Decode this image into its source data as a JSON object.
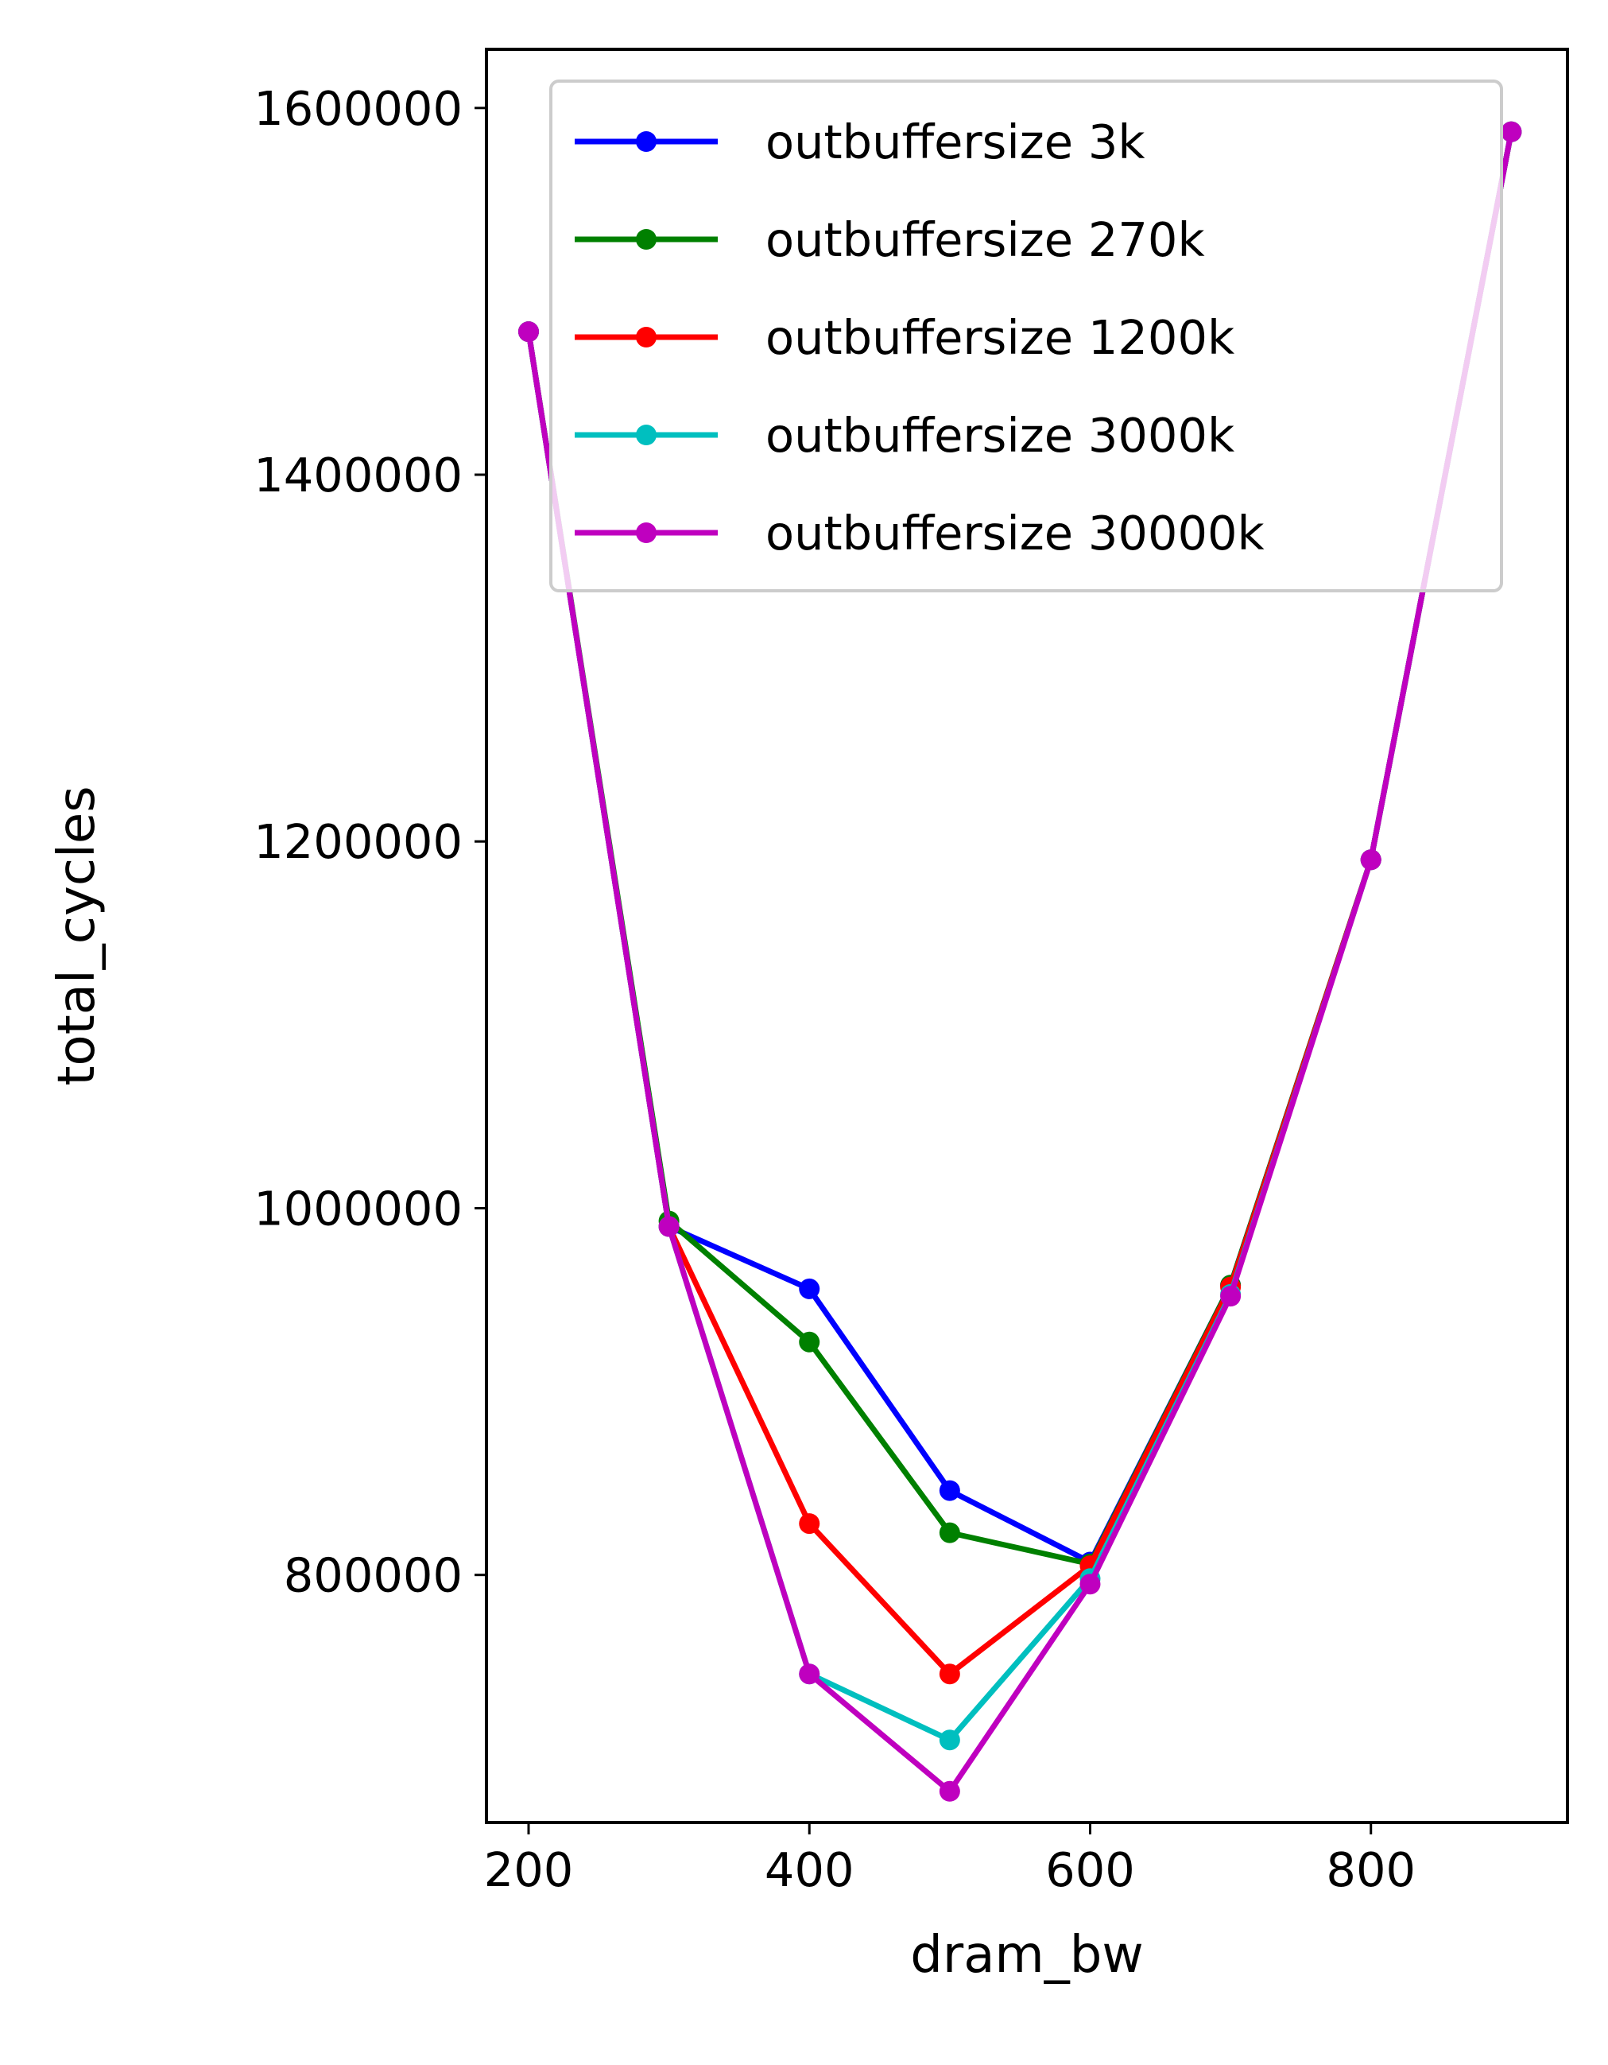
{
  "chart_data": {
    "type": "line",
    "title": "",
    "xlabel": "dram_bw",
    "ylabel": "total_cycles",
    "x": [
      200,
      300,
      400,
      500,
      600,
      700,
      800,
      900
    ],
    "xlim": [
      170,
      940
    ],
    "ylim": [
      665000,
      1632000
    ],
    "xticks": [
      200,
      400,
      600,
      800
    ],
    "yticks": [
      800000,
      1000000,
      1200000,
      1400000,
      1600000
    ],
    "grid": false,
    "legend_position": "top-right",
    "series": [
      {
        "name": "outbuffersize 3k",
        "color": "#0000ff",
        "values": [
          1478000,
          990000,
          956000,
          846000,
          807000,
          958000,
          1190000,
          1587000
        ]
      },
      {
        "name": "outbuffersize 270k",
        "color": "#008000",
        "values": [
          1478000,
          993000,
          927000,
          823000,
          806000,
          958000,
          1190000,
          1587000
        ]
      },
      {
        "name": "outbuffersize 1200k",
        "color": "#ff0000",
        "values": [
          1478000,
          990000,
          828000,
          746000,
          805000,
          957000,
          1190000,
          1587000
        ]
      },
      {
        "name": "outbuffersize 3000k",
        "color": "#00bfbf",
        "values": [
          1478000,
          990000,
          746000,
          710000,
          798000,
          953000,
          1190000,
          1587000
        ]
      },
      {
        "name": "outbuffersize 30000k",
        "color": "#bf00bf",
        "values": [
          1478000,
          990000,
          746000,
          682000,
          795000,
          952000,
          1190000,
          1587000
        ]
      }
    ]
  }
}
